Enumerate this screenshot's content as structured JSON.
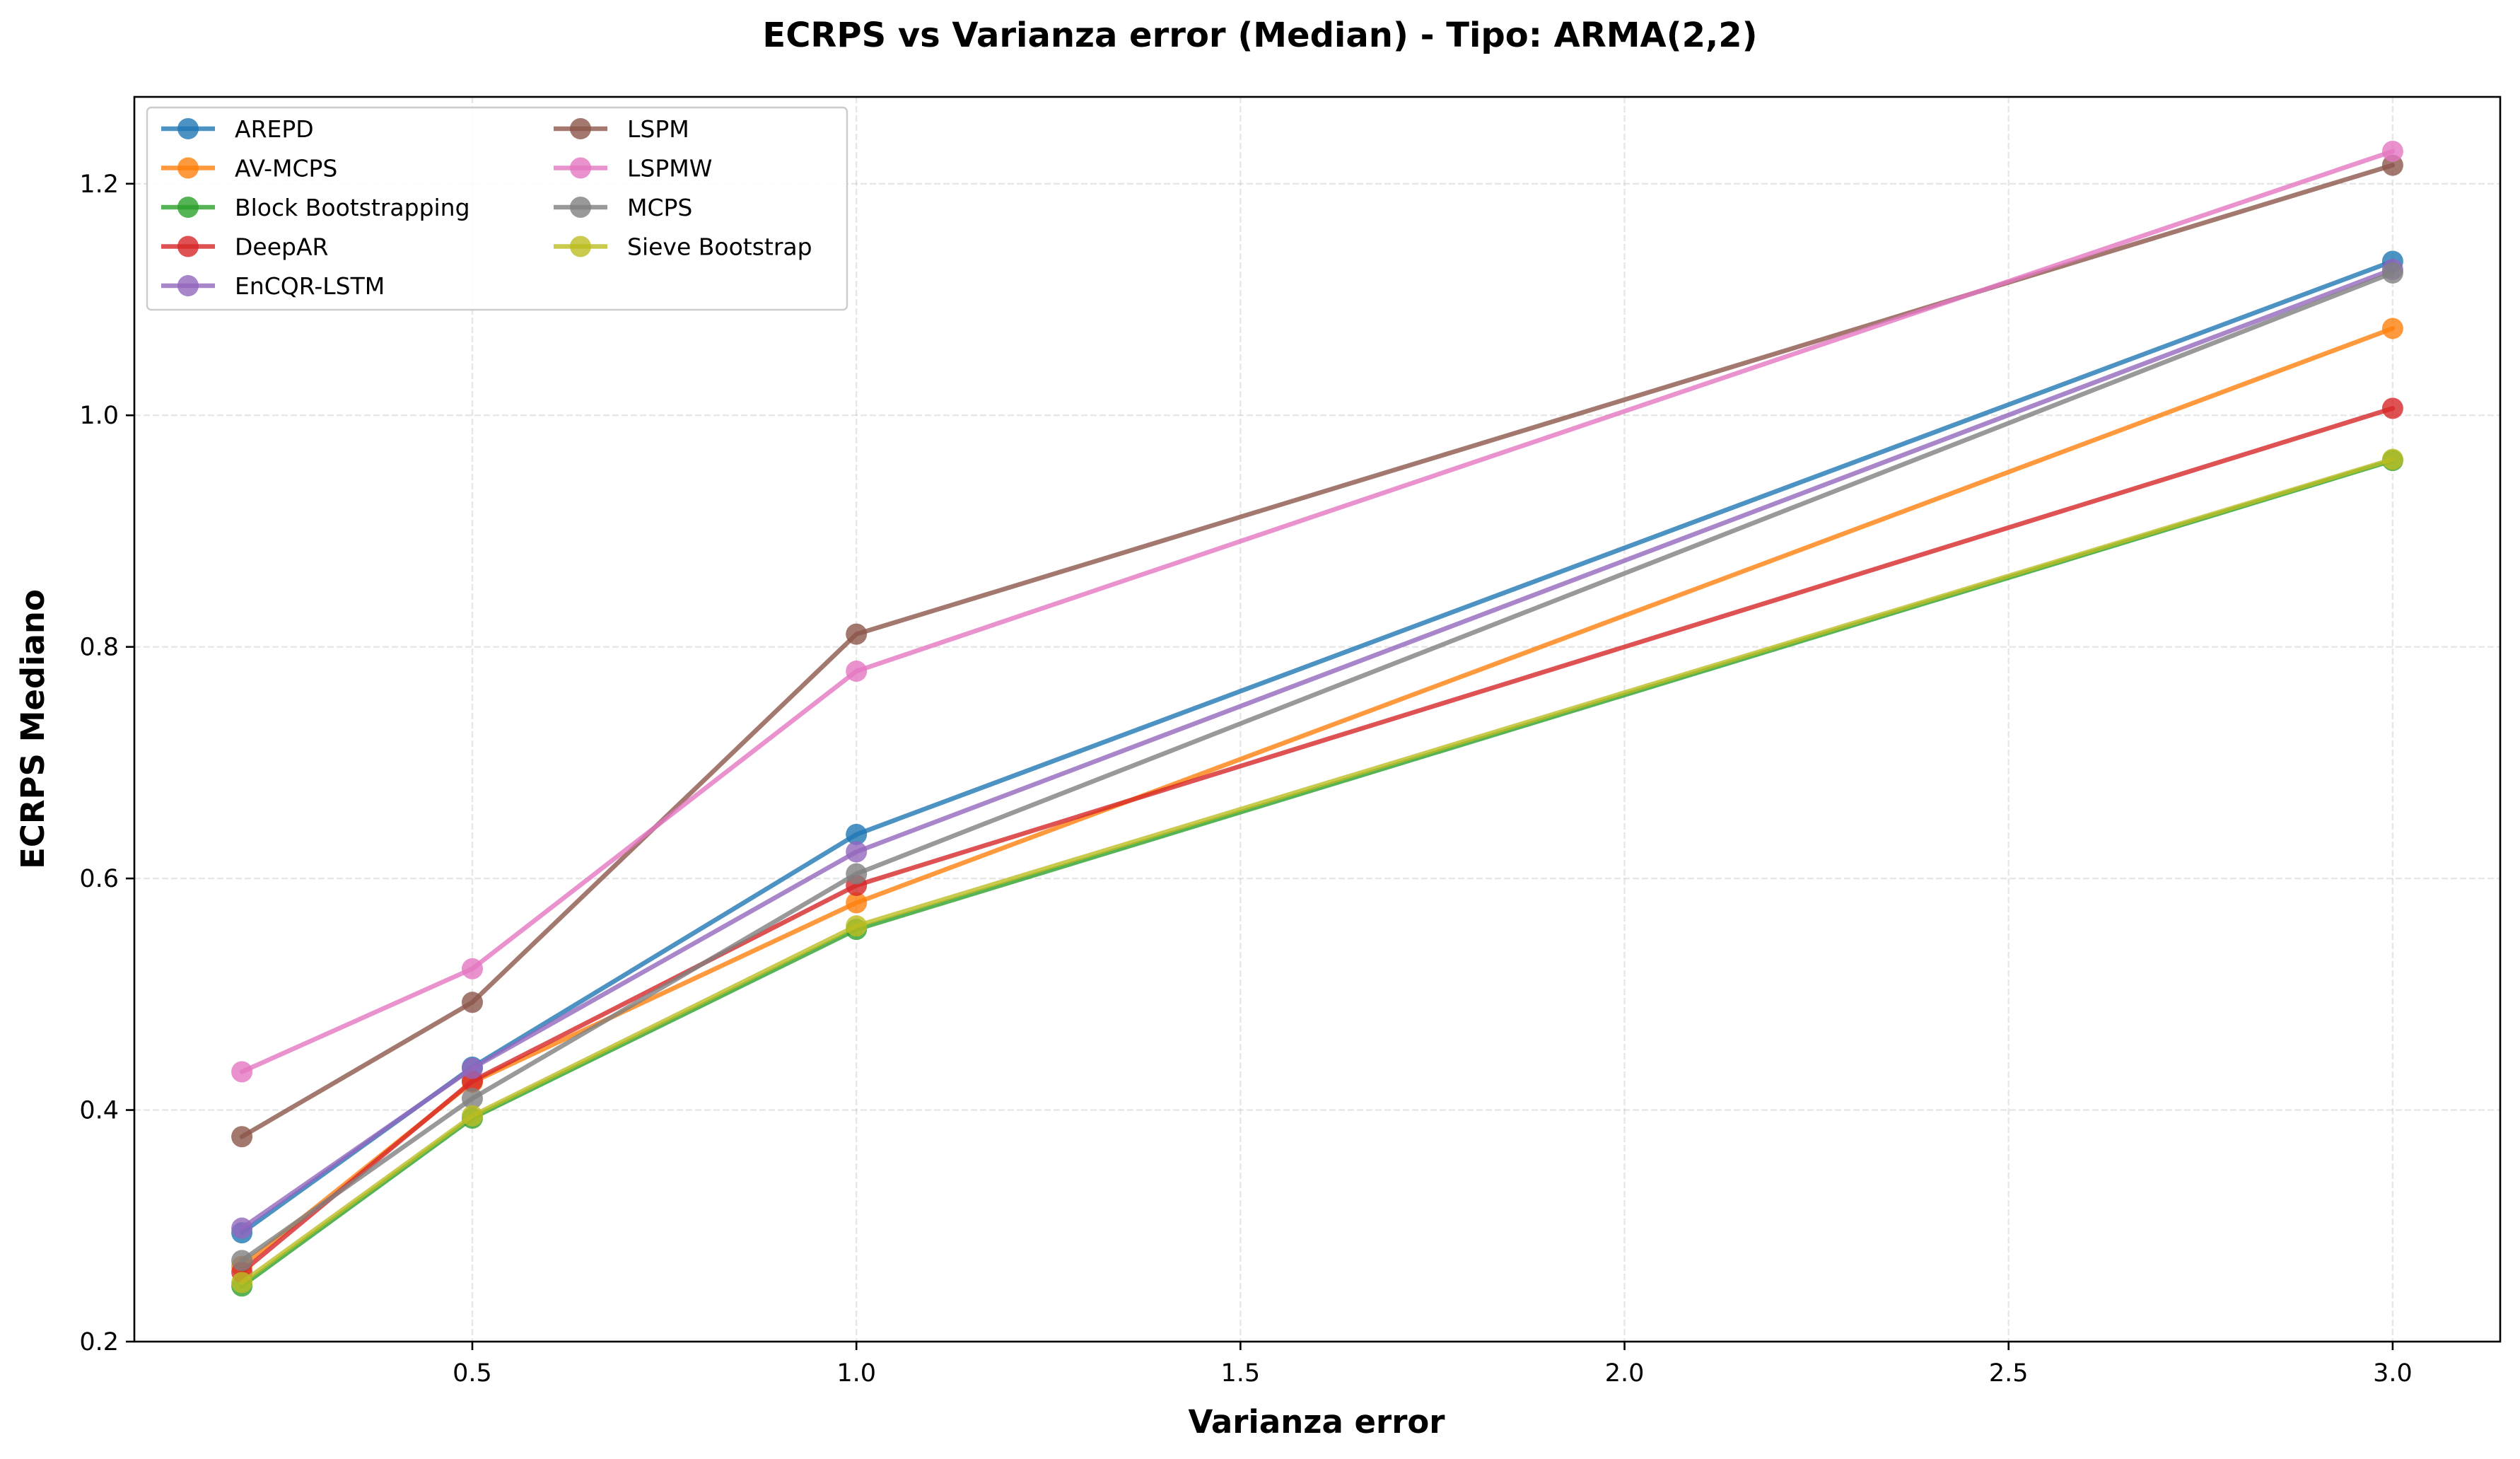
{
  "chart_data": {
    "type": "line",
    "title": "ECRPS vs Varianza error (Median) - Tipo: ARMA(2,2)",
    "xlabel": "Varianza error",
    "ylabel": "ECRPS Mediano",
    "x": [
      0.2,
      0.5,
      1.0,
      3.0
    ],
    "xlim": [
      0.06,
      3.14
    ],
    "ylim": [
      0.2,
      1.275
    ],
    "xticks": [
      "0.5",
      "1.0",
      "1.5",
      "2.0",
      "2.5",
      "3.0"
    ],
    "yticks": [
      "0.2",
      "0.4",
      "0.6",
      "0.8",
      "1.0",
      "1.2"
    ],
    "grid": true,
    "legend_position": "top-left",
    "series": [
      {
        "name": "AREPD",
        "color": "#1f77b4",
        "values": [
          0.294,
          0.437,
          0.638,
          1.133
        ]
      },
      {
        "name": "AV-MCPS",
        "color": "#ff7f0e",
        "values": [
          0.265,
          0.424,
          0.579,
          1.075
        ]
      },
      {
        "name": "Block Bootstrapping",
        "color": "#2ca02c",
        "values": [
          0.248,
          0.393,
          0.556,
          0.961
        ]
      },
      {
        "name": "DeepAR",
        "color": "#d62728",
        "values": [
          0.26,
          0.425,
          0.594,
          1.006
        ]
      },
      {
        "name": "EnCQR-LSTM",
        "color": "#9467bd",
        "values": [
          0.298,
          0.436,
          0.623,
          1.126
        ]
      },
      {
        "name": "LSPM",
        "color": "#8c564b",
        "values": [
          0.377,
          0.493,
          0.811,
          1.216
        ]
      },
      {
        "name": "LSPMW",
        "color": "#e377c2",
        "values": [
          0.433,
          0.522,
          0.779,
          1.228
        ]
      },
      {
        "name": "MCPS",
        "color": "#7f7f7f",
        "values": [
          0.27,
          0.41,
          0.604,
          1.123
        ]
      },
      {
        "name": "Sieve Bootstrap",
        "color": "#bcbd22",
        "values": [
          0.251,
          0.395,
          0.559,
          0.962
        ]
      }
    ]
  }
}
